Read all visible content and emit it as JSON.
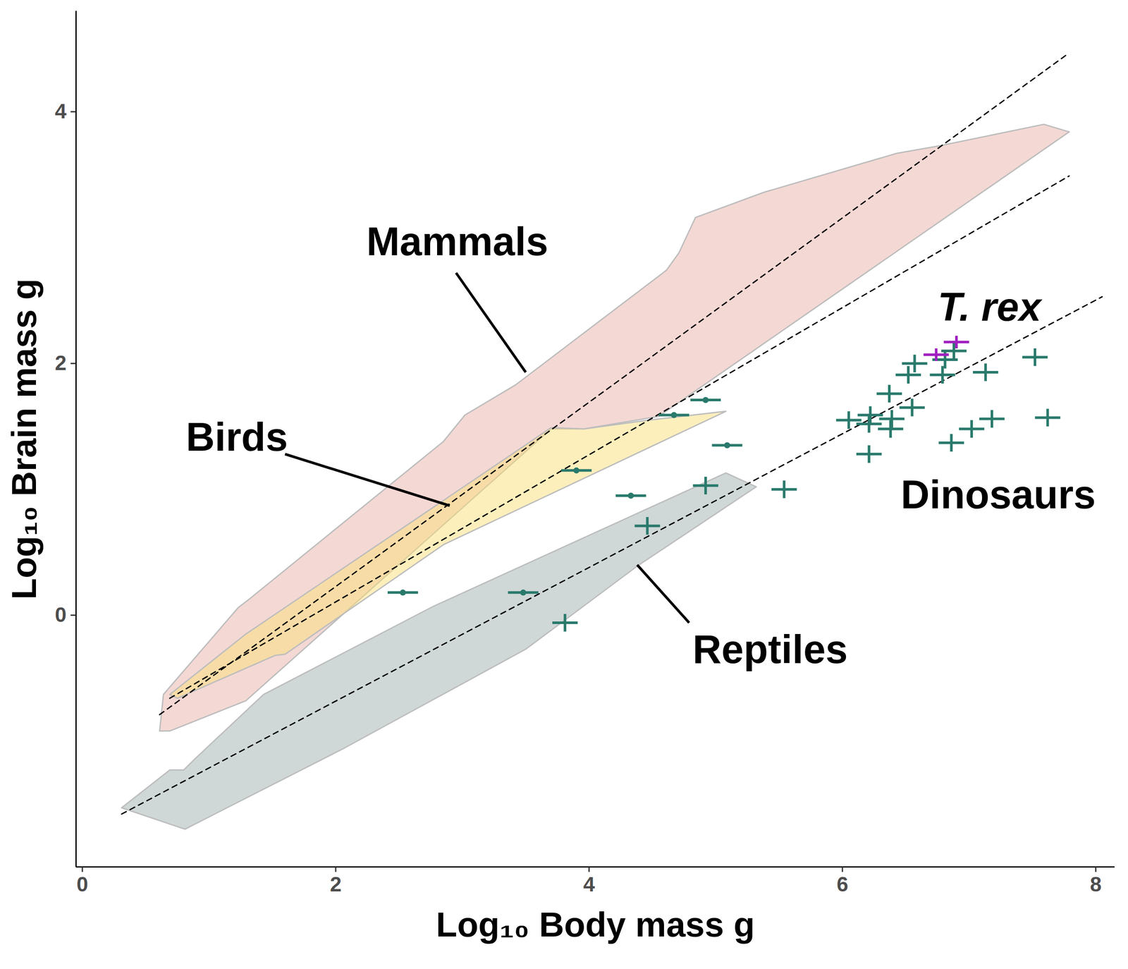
{
  "chart_data": {
    "type": "scatter",
    "x_label": "Log₁₀ Body mass g",
    "y_label": "Log₁₀ Brain mass g",
    "xlim": [
      -0.05,
      8.15
    ],
    "ylim": [
      -2,
      4.8
    ],
    "xticks": [
      0,
      2,
      4,
      6,
      8
    ],
    "yticks": [
      0,
      2,
      4
    ],
    "grid": false,
    "series": [
      {
        "type": "area",
        "color": "#9fb0b0",
        "values": [
          [
            0.31,
            -1.53
          ],
          [
            0.69,
            -1.23
          ],
          [
            0.8,
            -1.23
          ],
          [
            0.89,
            -1.14
          ],
          [
            1.43,
            -0.63
          ],
          [
            2.77,
            0.07
          ],
          [
            5.08,
            1.13
          ],
          [
            5.32,
            1.02
          ],
          [
            4.38,
            0.39
          ],
          [
            3.5,
            -0.27
          ],
          [
            2.06,
            -1.06
          ],
          [
            0.81,
            -1.7
          ]
        ]
      },
      {
        "type": "area",
        "color": "#eab2aa",
        "values": [
          [
            0.61,
            -0.92
          ],
          [
            0.64,
            -0.63
          ],
          [
            1.23,
            0.06
          ],
          [
            1.32,
            0.13
          ],
          [
            2.85,
            1.38
          ],
          [
            3.02,
            1.59
          ],
          [
            3.42,
            1.83
          ],
          [
            4.61,
            2.74
          ],
          [
            4.71,
            2.88
          ],
          [
            4.84,
            3.16
          ],
          [
            5.38,
            3.36
          ],
          [
            6.43,
            3.67
          ],
          [
            6.77,
            3.73
          ],
          [
            7.59,
            3.9
          ],
          [
            7.79,
            3.84
          ],
          [
            4.55,
            1.58
          ],
          [
            3.96,
            1.48
          ],
          [
            3.7,
            1.48
          ],
          [
            1.29,
            -0.68
          ],
          [
            0.69,
            -0.92
          ]
        ]
      },
      {
        "type": "area",
        "color": "#f9e07a",
        "values": [
          [
            0.69,
            -0.63
          ],
          [
            1.29,
            -0.15
          ],
          [
            3.7,
            1.49
          ],
          [
            3.96,
            1.48
          ],
          [
            4.47,
            1.55
          ],
          [
            5.08,
            1.62
          ],
          [
            2.85,
            0.56
          ],
          [
            1.6,
            -0.31
          ],
          [
            1.52,
            -0.32
          ],
          [
            0.75,
            -0.66
          ]
        ]
      },
      {
        "type": "line",
        "line_style": "dashed",
        "color": "#000000",
        "values": [
          [
            0.61,
            -0.79
          ],
          [
            7.78,
            4.46
          ]
        ]
      },
      {
        "type": "line",
        "line_style": "dashed",
        "color": "#000000",
        "values": [
          [
            0.69,
            -0.66
          ],
          [
            7.79,
            3.49
          ]
        ]
      },
      {
        "type": "line",
        "line_style": "dashed",
        "color": "#000000",
        "values": [
          [
            0.31,
            -1.58
          ],
          [
            8.05,
            2.53
          ]
        ]
      },
      {
        "type": "scatter",
        "marker": "circle",
        "color": "#2a7a6c",
        "values": [
          {
            "x": 2.53,
            "y": 0.18,
            "xerr": 0.12,
            "yerr": 0
          },
          {
            "x": 3.48,
            "y": 0.18,
            "xerr": 0.12,
            "yerr": 0
          },
          {
            "x": 3.9,
            "y": 1.15,
            "xerr": 0.12,
            "yerr": 0
          },
          {
            "x": 4.33,
            "y": 0.95,
            "xerr": 0.12,
            "yerr": 0
          },
          {
            "x": 4.67,
            "y": 1.59,
            "xerr": 0.12,
            "yerr": 0
          },
          {
            "x": 4.92,
            "y": 1.71,
            "xerr": 0.12,
            "yerr": 0
          },
          {
            "x": 5.09,
            "y": 1.35,
            "xerr": 0.12,
            "yerr": 0
          }
        ]
      },
      {
        "type": "scatter",
        "marker": "cross",
        "color": "#2a7a6c",
        "values": [
          {
            "x": 3.81,
            "y": -0.06,
            "xerr": 0.1,
            "yerr": 0.07
          },
          {
            "x": 4.46,
            "y": 0.71,
            "xerr": 0.1,
            "yerr": 0.07
          },
          {
            "x": 4.92,
            "y": 1.03,
            "xerr": 0.1,
            "yerr": 0.07
          },
          {
            "x": 5.54,
            "y": 1.0,
            "xerr": 0.1,
            "yerr": 0.07
          },
          {
            "x": 6.05,
            "y": 1.55,
            "xerr": 0.1,
            "yerr": 0.07
          },
          {
            "x": 6.22,
            "y": 1.59,
            "xerr": 0.1,
            "yerr": 0.07
          },
          {
            "x": 6.21,
            "y": 1.52,
            "xerr": 0.1,
            "yerr": 0.07
          },
          {
            "x": 6.21,
            "y": 1.28,
            "xerr": 0.1,
            "yerr": 0.07
          },
          {
            "x": 6.37,
            "y": 1.76,
            "xerr": 0.1,
            "yerr": 0.07
          },
          {
            "x": 6.39,
            "y": 1.56,
            "xerr": 0.1,
            "yerr": 0.07
          },
          {
            "x": 6.38,
            "y": 1.48,
            "xerr": 0.1,
            "yerr": 0.07
          },
          {
            "x": 6.55,
            "y": 1.65,
            "xerr": 0.1,
            "yerr": 0.07
          },
          {
            "x": 6.52,
            "y": 1.91,
            "xerr": 0.1,
            "yerr": 0.07
          },
          {
            "x": 6.57,
            "y": 2.0,
            "xerr": 0.1,
            "yerr": 0.07
          },
          {
            "x": 6.79,
            "y": 1.91,
            "xerr": 0.1,
            "yerr": 0.07
          },
          {
            "x": 6.81,
            "y": 2.03,
            "xerr": 0.1,
            "yerr": 0.07
          },
          {
            "x": 6.88,
            "y": 2.1,
            "xerr": 0.1,
            "yerr": 0.07
          },
          {
            "x": 6.86,
            "y": 1.37,
            "xerr": 0.1,
            "yerr": 0.07
          },
          {
            "x": 7.02,
            "y": 1.48,
            "xerr": 0.1,
            "yerr": 0.07
          },
          {
            "x": 7.18,
            "y": 1.56,
            "xerr": 0.1,
            "yerr": 0.07
          },
          {
            "x": 7.13,
            "y": 1.93,
            "xerr": 0.1,
            "yerr": 0.07
          },
          {
            "x": 7.52,
            "y": 2.05,
            "xerr": 0.1,
            "yerr": 0.07
          },
          {
            "x": 7.62,
            "y": 1.57,
            "xerr": 0.1,
            "yerr": 0.07
          }
        ]
      },
      {
        "type": "scatter",
        "marker": "cross",
        "color": "#a020c0",
        "values": [
          {
            "x": 6.74,
            "y": 2.07,
            "xerr": 0.1,
            "yerr": 0.05
          },
          {
            "x": 6.9,
            "y": 2.17,
            "xerr": 0.1,
            "yerr": 0.05
          }
        ]
      }
    ],
    "annotations": [
      {
        "text": "Mammals",
        "x": 2.96,
        "y": 2.96,
        "line": [
          [
            2.95,
            2.72
          ],
          [
            3.5,
            1.93
          ]
        ]
      },
      {
        "text": "Birds",
        "x": 1.22,
        "y": 1.41,
        "line": [
          [
            1.6,
            1.28
          ],
          [
            2.9,
            0.87
          ]
        ]
      },
      {
        "text": "Reptiles",
        "x": 5.43,
        "y": -0.28,
        "line": [
          [
            4.79,
            -0.06
          ],
          [
            4.38,
            0.4
          ]
        ]
      },
      {
        "text": "T. rex",
        "x": 7.16,
        "y": 2.44,
        "style": "italic"
      },
      {
        "text": "Dinosaurs",
        "x": 7.23,
        "y": 0.95
      }
    ]
  }
}
